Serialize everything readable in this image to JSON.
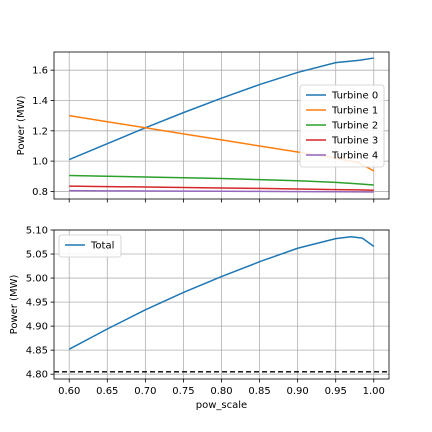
{
  "chart_data": [
    {
      "type": "line",
      "xlabel": "",
      "ylabel": "Power (MW)",
      "xlim": [
        0.58,
        1.02
      ],
      "ylim": [
        0.75,
        1.72
      ],
      "grid": true,
      "legend_position": "center-right",
      "x_ticks": [
        0.6,
        0.65,
        0.7,
        0.75,
        0.8,
        0.85,
        0.9,
        0.95,
        1.0
      ],
      "y_ticks": [
        0.8,
        1.0,
        1.2,
        1.4,
        1.6
      ],
      "y_tick_labels": [
        "0.8",
        "1.0",
        "1.2",
        "1.4",
        "1.6"
      ],
      "x": [
        0.6,
        0.65,
        0.7,
        0.75,
        0.8,
        0.85,
        0.9,
        0.95,
        0.98,
        1.0
      ],
      "series": [
        {
          "name": "Turbine 0",
          "color": "#1f77b4",
          "values": [
            1.01,
            1.115,
            1.22,
            1.32,
            1.415,
            1.505,
            1.585,
            1.65,
            1.665,
            1.68
          ]
        },
        {
          "name": "Turbine 1",
          "color": "#ff7f0e",
          "values": [
            1.3,
            1.26,
            1.22,
            1.18,
            1.14,
            1.1,
            1.06,
            1.02,
            0.99,
            0.935
          ]
        },
        {
          "name": "Turbine 2",
          "color": "#2ca02c",
          "values": [
            0.905,
            0.9,
            0.895,
            0.89,
            0.885,
            0.878,
            0.87,
            0.86,
            0.85,
            0.842
          ]
        },
        {
          "name": "Turbine 3",
          "color": "#d62728",
          "values": [
            0.835,
            0.832,
            0.829,
            0.826,
            0.823,
            0.82,
            0.816,
            0.812,
            0.81,
            0.808
          ]
        },
        {
          "name": "Turbine 4",
          "color": "#9467bd",
          "values": [
            0.805,
            0.804,
            0.803,
            0.802,
            0.801,
            0.8,
            0.799,
            0.798,
            0.797,
            0.796
          ]
        }
      ]
    },
    {
      "type": "line",
      "xlabel": "pow_scale",
      "ylabel": "Power (MW)",
      "xlim": [
        0.58,
        1.02
      ],
      "ylim": [
        4.79,
        5.1
      ],
      "grid": true,
      "legend_position": "top-left",
      "x_ticks": [
        0.6,
        0.65,
        0.7,
        0.75,
        0.8,
        0.85,
        0.9,
        0.95,
        1.0
      ],
      "x_tick_labels": [
        "0.60",
        "0.65",
        "0.70",
        "0.75",
        "0.80",
        "0.85",
        "0.90",
        "0.95",
        "1.00"
      ],
      "y_ticks": [
        4.8,
        4.85,
        4.9,
        4.95,
        5.0,
        5.05,
        5.1
      ],
      "y_tick_labels": [
        "4.80",
        "4.85",
        "4.90",
        "4.95",
        "5.00",
        "5.05",
        "5.10"
      ],
      "x": [
        0.6,
        0.65,
        0.7,
        0.75,
        0.8,
        0.85,
        0.9,
        0.95,
        0.97,
        0.985,
        1.0
      ],
      "series": [
        {
          "name": "Total",
          "color": "#1f77b4",
          "values": [
            4.852,
            4.894,
            4.934,
            4.97,
            5.003,
            5.034,
            5.062,
            5.082,
            5.086,
            5.083,
            5.066
          ]
        }
      ],
      "reference_line": {
        "y": 4.805,
        "style": "dashed",
        "color": "#000000"
      }
    }
  ]
}
